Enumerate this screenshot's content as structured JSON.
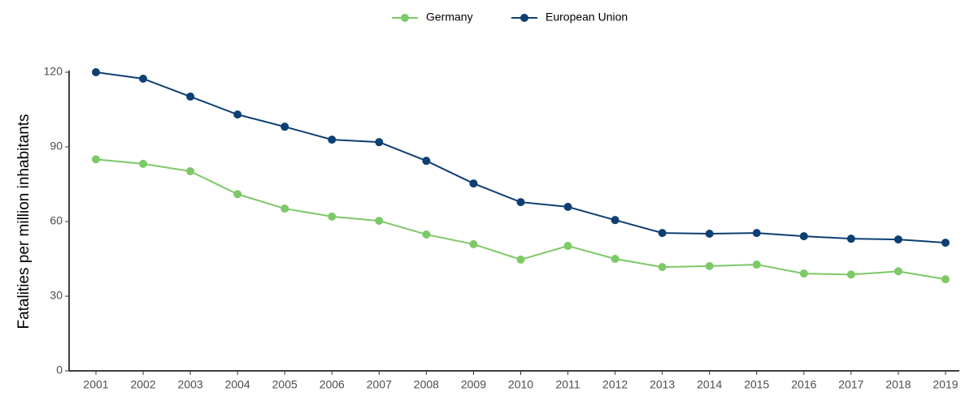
{
  "chart_data": {
    "type": "line",
    "y_label": "Fatalities per million inhabitants",
    "categories": [
      "2001",
      "2002",
      "2003",
      "2004",
      "2005",
      "2006",
      "2007",
      "2008",
      "2009",
      "2010",
      "2011",
      "2012",
      "2013",
      "2014",
      "2015",
      "2016",
      "2017",
      "2018",
      "2019"
    ],
    "series": [
      {
        "name": "Germany",
        "color": "#7dc967",
        "values": [
          85,
          83.2,
          80.2,
          71,
          65.2,
          62,
          60.3,
          54.8,
          50.9,
          44.7,
          50.2,
          45,
          41.7,
          42.1,
          42.7,
          39.1,
          38.7,
          40,
          36.8
        ]
      },
      {
        "name": "European Union",
        "color": "#0d3f73",
        "values": [
          120,
          117.4,
          110.2,
          103,
          98.1,
          92.9,
          91.9,
          84.4,
          75.3,
          67.8,
          65.9,
          60.6,
          55.4,
          55.1,
          55.4,
          54.1,
          53.1,
          52.8,
          51.5
        ]
      }
    ],
    "ylim": [
      0,
      120
    ],
    "yticks": [
      0,
      30,
      60,
      90,
      120
    ],
    "legend": "top"
  }
}
